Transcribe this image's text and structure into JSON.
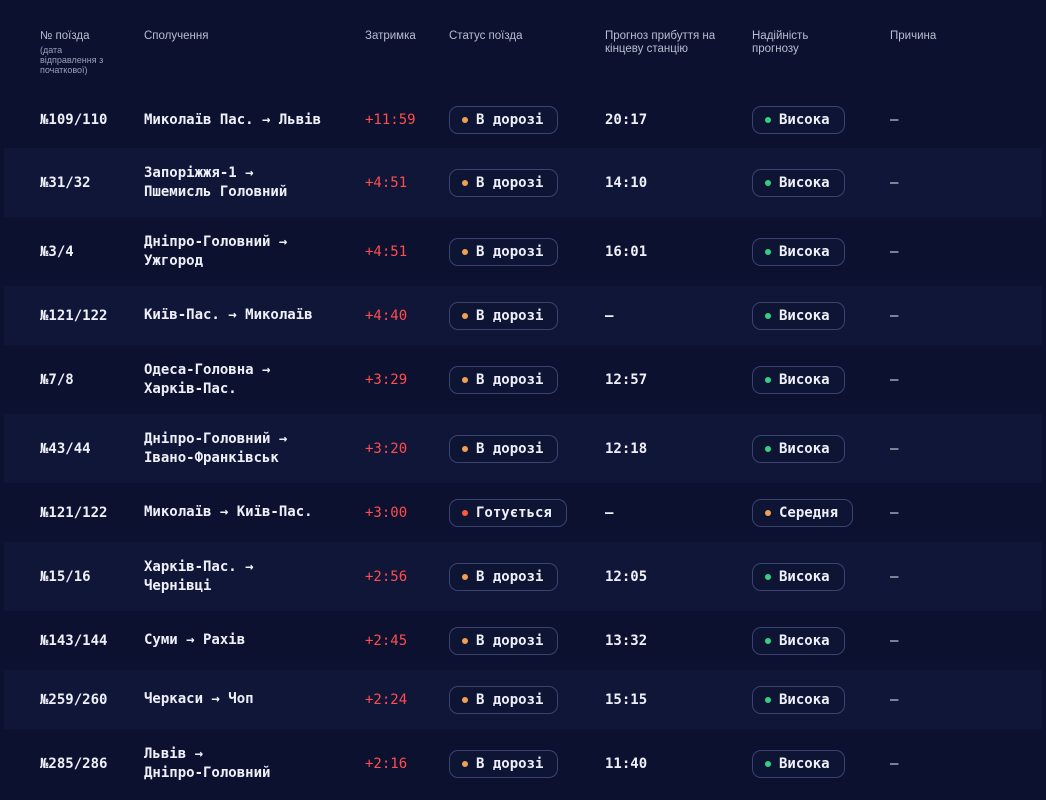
{
  "headers": {
    "train": "№ поїзда",
    "train_sub": "(дата відправлення з початкової)",
    "route": "Сполучення",
    "delay": "Затримка",
    "status": "Статус поїзда",
    "eta": "Прогноз прибуття на кінцеву станцію",
    "reliability": "Надійність прогнозу",
    "reason": "Причина"
  },
  "colors": {
    "status_onway_dot": "#f0a050",
    "status_preparing_dot": "#ff5a3c",
    "reliability_high_dot": "#35d07f",
    "reliability_medium_dot": "#f0a050",
    "delay": "#ff4d4d"
  },
  "rows": [
    {
      "num": "№109/110",
      "route": [
        "Миколаїв Пас. → Львів"
      ],
      "delay": "+11:59",
      "status": "В дорозі",
      "status_kind": "onway",
      "eta": "20:17",
      "reliability": "Висока",
      "rel_kind": "high",
      "reason": "—"
    },
    {
      "num": "№31/32",
      "route": [
        "Запоріжжя-1 →",
        "Пшемисль Головний"
      ],
      "delay": "+4:51",
      "status": "В дорозі",
      "status_kind": "onway",
      "eta": "14:10",
      "reliability": "Висока",
      "rel_kind": "high",
      "reason": "—"
    },
    {
      "num": "№3/4",
      "route": [
        "Дніпро-Головний →",
        "Ужгород"
      ],
      "delay": "+4:51",
      "status": "В дорозі",
      "status_kind": "onway",
      "eta": "16:01",
      "reliability": "Висока",
      "rel_kind": "high",
      "reason": "—"
    },
    {
      "num": "№121/122",
      "route": [
        "Київ-Пас. → Миколаїв"
      ],
      "delay": "+4:40",
      "status": "В дорозі",
      "status_kind": "onway",
      "eta": "—",
      "reliability": "Висока",
      "rel_kind": "high",
      "reason": "—"
    },
    {
      "num": "№7/8",
      "route": [
        "Одеса-Головна →",
        "Харків-Пас."
      ],
      "delay": "+3:29",
      "status": "В дорозі",
      "status_kind": "onway",
      "eta": "12:57",
      "reliability": "Висока",
      "rel_kind": "high",
      "reason": "—"
    },
    {
      "num": "№43/44",
      "route": [
        "Дніпро-Головний →",
        "Івано-Франківськ"
      ],
      "delay": "+3:20",
      "status": "В дорозі",
      "status_kind": "onway",
      "eta": "12:18",
      "reliability": "Висока",
      "rel_kind": "high",
      "reason": "—"
    },
    {
      "num": "№121/122",
      "route": [
        "Миколаїв → Київ-Пас."
      ],
      "delay": "+3:00",
      "status": "Готується",
      "status_kind": "preparing",
      "eta": "—",
      "reliability": "Середня",
      "rel_kind": "medium",
      "reason": "—"
    },
    {
      "num": "№15/16",
      "route": [
        "Харків-Пас. →",
        "Чернівці"
      ],
      "delay": "+2:56",
      "status": "В дорозі",
      "status_kind": "onway",
      "eta": "12:05",
      "reliability": "Висока",
      "rel_kind": "high",
      "reason": "—"
    },
    {
      "num": "№143/144",
      "route": [
        "Суми → Рахів"
      ],
      "delay": "+2:45",
      "status": "В дорозі",
      "status_kind": "onway",
      "eta": "13:32",
      "reliability": "Висока",
      "rel_kind": "high",
      "reason": "—"
    },
    {
      "num": "№259/260",
      "route": [
        "Черкаси → Чоп"
      ],
      "delay": "+2:24",
      "status": "В дорозі",
      "status_kind": "onway",
      "eta": "15:15",
      "reliability": "Висока",
      "rel_kind": "high",
      "reason": "—"
    },
    {
      "num": "№285/286",
      "route": [
        "Львів →",
        "Дніпро-Головний"
      ],
      "delay": "+2:16",
      "status": "В дорозі",
      "status_kind": "onway",
      "eta": "11:40",
      "reliability": "Висока",
      "rel_kind": "high",
      "reason": "—"
    }
  ]
}
